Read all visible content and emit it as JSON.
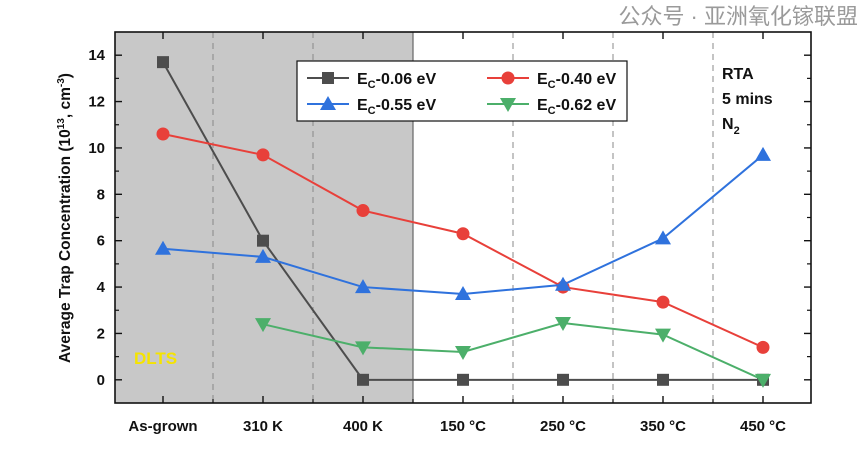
{
  "chart_data": {
    "type": "line",
    "title": "",
    "xlabel": "",
    "ylabel": "Average Trap Concentration (10^13 , cm^-3)",
    "ylabel_parts": {
      "main": "Average Trap Concentration (10",
      "sup1": "13",
      "mid": ", cm",
      "sup2": "-3",
      "end": ")"
    },
    "ylim": [
      -1,
      15
    ],
    "yticks": [
      "0",
      "2",
      "4",
      "6",
      "8",
      "10",
      "12",
      "14"
    ],
    "categories": [
      "As-grown",
      "310 K",
      "400 K",
      "150 °C",
      "250 °C",
      "350 °C",
      "450 °C"
    ],
    "grid": "vertical dashed separators",
    "legend_placement": "top-center",
    "shaded_region": {
      "from": "As-grown",
      "to": "400 K",
      "color": "#c8c8c8"
    },
    "series": [
      {
        "name": "EC-0.06 eV",
        "label_base": "E",
        "label_sub": "C",
        "label_rest": "-0.06 eV",
        "color": "#4d4d4d",
        "marker": "square",
        "values": [
          13.7,
          6.0,
          0,
          0,
          0,
          0,
          0
        ]
      },
      {
        "name": "EC-0.40 eV",
        "label_base": "E",
        "label_sub": "C",
        "label_rest": "-0.40 eV",
        "color": "#e8403a",
        "marker": "circle",
        "values": [
          10.6,
          9.7,
          7.3,
          6.3,
          4.0,
          3.35,
          1.4
        ]
      },
      {
        "name": "EC-0.55 eV",
        "label_base": "E",
        "label_sub": "C",
        "label_rest": "-0.55 eV",
        "color": "#2f72dd",
        "marker": "triangle-up",
        "values": [
          5.65,
          5.3,
          4.0,
          3.7,
          4.1,
          6.1,
          9.7
        ]
      },
      {
        "name": "EC-0.62 eV",
        "label_base": "E",
        "label_sub": "C",
        "label_rest": "-0.62 eV",
        "color": "#4caf6a",
        "marker": "triangle-down",
        "values": [
          null,
          2.4,
          1.4,
          1.2,
          2.45,
          1.95,
          0
        ]
      }
    ],
    "annotations": {
      "region_label": "DLTS",
      "region_label_color": "#f5e400",
      "rta_lines": [
        "RTA",
        "5 mins"
      ],
      "n2_base": "N",
      "n2_sub": "2"
    }
  },
  "watermark": "公众号 · 亚洲氧化镓联盟"
}
